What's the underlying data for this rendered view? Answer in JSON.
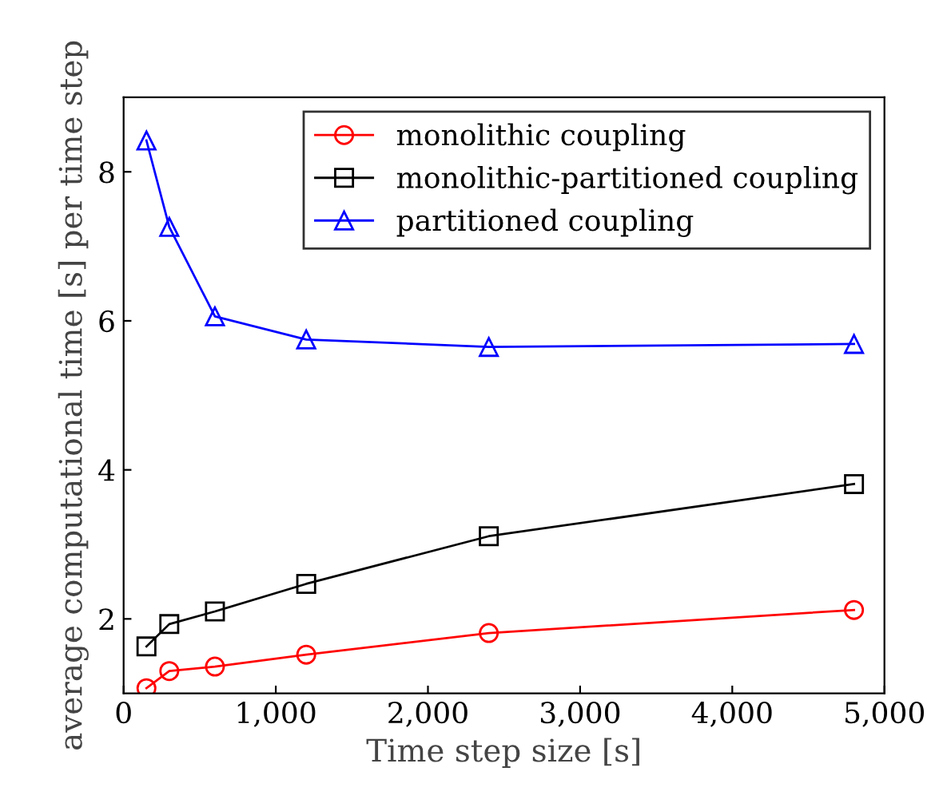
{
  "chart_data": {
    "type": "line",
    "xlabel": "Time step size [s]",
    "ylabel": "average computational time [s] per time step",
    "x": [
      150,
      300,
      600,
      1200,
      2400,
      4800
    ],
    "series": [
      {
        "name": "monolithic coupling",
        "color": "#ff0000",
        "marker": "circle",
        "values": [
          1.07,
          1.3,
          1.36,
          1.52,
          1.81,
          2.12
        ]
      },
      {
        "name": "monolithic-partitioned coupling",
        "color": "#000000",
        "marker": "square",
        "values": [
          1.63,
          1.93,
          2.1,
          2.47,
          3.11,
          3.81
        ]
      },
      {
        "name": "partitioned coupling",
        "color": "#0000ff",
        "marker": "triangle",
        "values": [
          8.42,
          7.26,
          6.06,
          5.75,
          5.65,
          5.69
        ]
      }
    ],
    "xlim": [
      0,
      5000
    ],
    "ylim": [
      1,
      9
    ],
    "xticks": [
      0,
      {
        "value": 1000,
        "label": "1,000"
      },
      {
        "value": 2000,
        "label": "2,000"
      },
      {
        "value": 3000,
        "label": "3,000"
      },
      {
        "value": 4000,
        "label": "4,000"
      },
      {
        "value": 5000,
        "label": "5,000"
      }
    ],
    "yticks": [
      2,
      4,
      6,
      8
    ],
    "grid": false,
    "legend": "top right"
  }
}
